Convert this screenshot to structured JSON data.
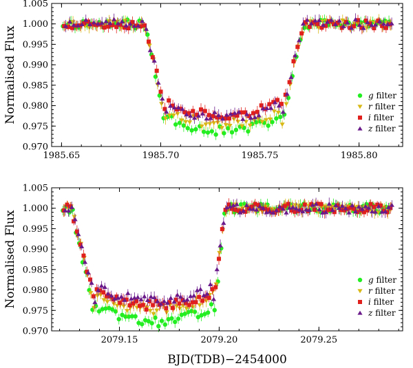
{
  "colors": {
    "g": "#22ee22",
    "r": "#d8b814",
    "i": "#e0201c",
    "z": "#6a1a8a",
    "frame": "#000000"
  },
  "legend": [
    {
      "key": "g",
      "italic": "g",
      "text": " filter",
      "marker": "circle"
    },
    {
      "key": "r",
      "italic": "r",
      "text": " filter",
      "marker": "triangle-down"
    },
    {
      "key": "i",
      "italic": "i",
      "text": " filter",
      "marker": "square"
    },
    {
      "key": "z",
      "italic": "z",
      "text": " filter",
      "marker": "triangle-up"
    }
  ],
  "xlabel": "BJD(TDB)−2454000",
  "chart_data": [
    {
      "type": "scatter",
      "ylabel": "Normalised Flux",
      "xlim": [
        1985.645,
        1985.822
      ],
      "ylim": [
        0.97,
        1.005
      ],
      "xticks": [
        {
          "value": 1985.65,
          "label": "1985.65"
        },
        {
          "value": 1985.7,
          "label": "1985.70"
        },
        {
          "value": 1985.75,
          "label": "1985.75"
        },
        {
          "value": 1985.8,
          "label": "1985.80"
        }
      ],
      "yticks": [
        {
          "value": 0.97,
          "label": "0.970"
        },
        {
          "value": 0.975,
          "label": "0.975"
        },
        {
          "value": 0.98,
          "label": "0.980"
        },
        {
          "value": 0.985,
          "label": "0.985"
        },
        {
          "value": 0.99,
          "label": "0.990"
        },
        {
          "value": 0.995,
          "label": "0.995"
        },
        {
          "value": 1.0,
          "label": "1.000"
        },
        {
          "value": 1.005,
          "label": "1.005"
        }
      ],
      "legend_position": "lower-right",
      "transit": {
        "t1": 1985.692,
        "t2": 1985.703,
        "t3": 1985.761,
        "t4": 1985.772,
        "baseline": 1.0,
        "err": 0.0012
      },
      "series": [
        {
          "key": "g",
          "name": "g filter",
          "marker": "circle",
          "bottom": 0.9738,
          "dx": -0.0006,
          "seed": 11,
          "n": 82
        },
        {
          "key": "r",
          "name": "r filter",
          "marker": "triangle-down",
          "bottom": 0.9755,
          "dx": 0.0004,
          "seed": 23,
          "n": 82
        },
        {
          "key": "i",
          "name": "i filter",
          "marker": "square",
          "bottom": 0.9778,
          "dx": 0.0,
          "seed": 37,
          "n": 82
        },
        {
          "key": "z",
          "name": "z filter",
          "marker": "triangle-up",
          "bottom": 0.9772,
          "dx": 0.0008,
          "seed": 51,
          "n": 82
        }
      ]
    },
    {
      "type": "scatter",
      "ylabel": "Normalised Flux",
      "xlim": [
        2079.116,
        2079.292
      ],
      "ylim": [
        0.97,
        1.005
      ],
      "xticks": [
        {
          "value": 2079.15,
          "label": "2079.15"
        },
        {
          "value": 2079.2,
          "label": "2079.20"
        },
        {
          "value": 2079.25,
          "label": "2079.25"
        }
      ],
      "yticks": [
        {
          "value": 0.97,
          "label": "0.970"
        },
        {
          "value": 0.975,
          "label": "0.975"
        },
        {
          "value": 0.98,
          "label": "0.980"
        },
        {
          "value": 0.985,
          "label": "0.985"
        },
        {
          "value": 0.99,
          "label": "0.990"
        },
        {
          "value": 0.995,
          "label": "0.995"
        },
        {
          "value": 1.0,
          "label": "1.000"
        },
        {
          "value": 1.005,
          "label": "1.005"
        }
      ],
      "legend_position": "lower-right",
      "transit": {
        "t1": 2079.126,
        "t2": 2079.138,
        "t3": 2079.197,
        "t4": 2079.203,
        "baseline": 1.0,
        "err": 0.0012
      },
      "series": [
        {
          "key": "g",
          "name": "g filter",
          "marker": "circle",
          "bottom": 0.9722,
          "dx": -0.0005,
          "seed": 13,
          "n": 100
        },
        {
          "key": "r",
          "name": "r filter",
          "marker": "triangle-down",
          "bottom": 0.9752,
          "dx": 0.0003,
          "seed": 29,
          "n": 100
        },
        {
          "key": "i",
          "name": "i filter",
          "marker": "square",
          "bottom": 0.9762,
          "dx": 0.0,
          "seed": 41,
          "n": 100
        },
        {
          "key": "z",
          "name": "z filter",
          "marker": "triangle-up",
          "bottom": 0.9775,
          "dx": 0.0007,
          "seed": 59,
          "n": 100
        }
      ]
    }
  ]
}
